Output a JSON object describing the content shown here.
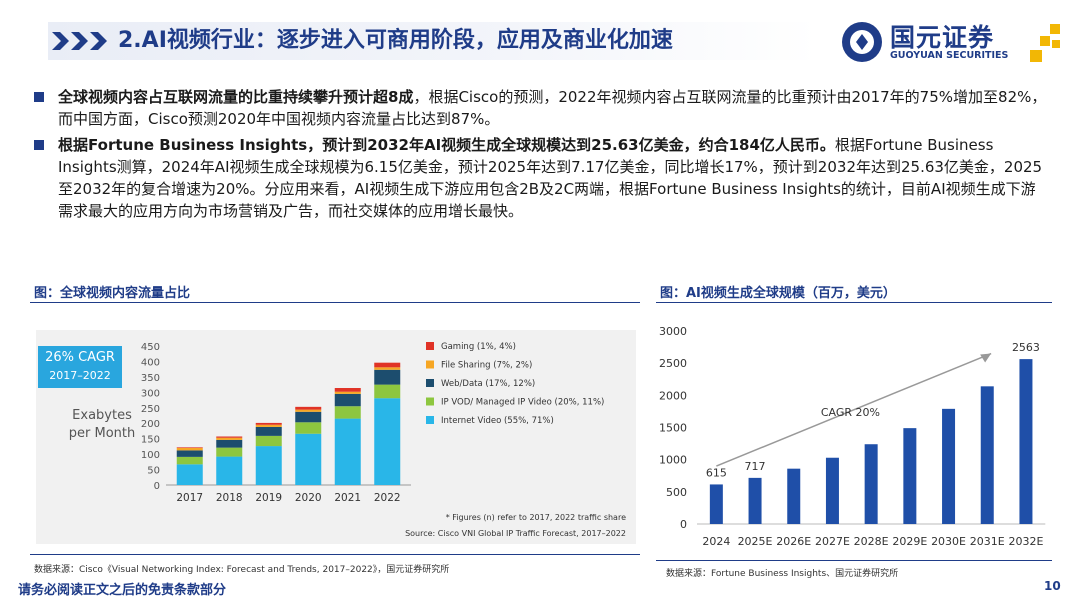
{
  "header": {
    "title": "2.AI视频行业：逐步进入可商用阶段，应用及商业化加速",
    "logo_cn": "国元证券",
    "logo_en": "GUOYUAN SECURITIES"
  },
  "bullets": [
    {
      "bold": "全球视频内容占互联网流量的比重持续攀升预计超8成",
      "text": "，根据Cisco的预测，2022年视频内容占互联网流量的比重预计由2017年的75%增加至82%，而中国方面，Cisco预测2020年中国视频内容流量占比达到87%。"
    },
    {
      "bold": "根据Fortune Business Insights，预计到2032年AI视频生成全球规模达到25.63亿美金，约合184亿人民币。",
      "text": "根据Fortune Business Insights测算，2024年AI视频生成全球规模为6.15亿美金，预计2025年达到7.17亿美金，同比增长17%，预计到2032年达到25.63亿美金，2025至2032年的复合增速为20%。分应用来看，AI视频生成下游应用包含2B及2C两端，根据Fortune Business Insights的统计，目前AI视频生成下游需求最大的应用方向为市场营销及广告，而社交媒体的应用增长最快。"
    }
  ],
  "figure_left": {
    "title": "图：全球视频内容流量占比",
    "cagr_label": "26% CAGR",
    "cagr_years": "2017–2022",
    "ylabel_line1": "Exabytes",
    "ylabel_line2": "per Month",
    "footnote": "* Figures (n) refer to 2017, 2022 traffic share",
    "inner_source": "Source: Cisco VNI Global IP Traffic Forecast, 2017–2022",
    "source": "数据来源：Cisco《Visual Networking Index: Forecast and Trends, 2017–2022》，国元证券研究所"
  },
  "figure_right": {
    "title": "图：AI视频生成全球规模（百万，美元）",
    "cagr_annotation": "CAGR 20%",
    "source": "数据来源：Fortune Business Insights、国元证券研究所"
  },
  "chart_data": [
    {
      "type": "bar",
      "stacked": true,
      "title": "全球视频内容流量占比",
      "ylabel": "Exabytes per Month",
      "categories": [
        "2017",
        "2018",
        "2019",
        "2020",
        "2021",
        "2022"
      ],
      "ylim": [
        0,
        450
      ],
      "yticks": [
        0,
        50,
        100,
        150,
        200,
        250,
        300,
        350,
        400,
        450
      ],
      "series": [
        {
          "name": "Internet Video (55%, 71%)",
          "color": "#29b6e8",
          "values": [
            67,
            92,
            126,
            166,
            215,
            281
          ]
        },
        {
          "name": "IP VOD/ Managed IP Video (20%, 11%)",
          "color": "#8dc63f",
          "values": [
            24,
            29,
            33,
            37,
            40,
            44
          ]
        },
        {
          "name": "Web/Data (17%, 12%)",
          "color": "#1c4d6e",
          "values": [
            21,
            25,
            29,
            34,
            40,
            48
          ]
        },
        {
          "name": "File Sharing (7%, 2%)",
          "color": "#f6a623",
          "values": [
            8,
            7,
            7,
            7,
            7,
            8
          ]
        },
        {
          "name": "Gaming (1%, 4%)",
          "color": "#e03326",
          "values": [
            2,
            4,
            6,
            9,
            12,
            15
          ]
        }
      ]
    },
    {
      "type": "bar",
      "title": "AI视频生成全球规模（百万，美元）",
      "categories": [
        "2024",
        "2025E",
        "2026E",
        "2027E",
        "2028E",
        "2029E",
        "2030E",
        "2031E",
        "2032E"
      ],
      "values": [
        615,
        717,
        860,
        1030,
        1240,
        1490,
        1790,
        2140,
        2563
      ],
      "labels_shown": {
        "0": "615",
        "1": "717",
        "8": "2563"
      },
      "ylim": [
        0,
        3000
      ],
      "yticks": [
        0,
        500,
        1000,
        1500,
        2000,
        2500,
        3000
      ],
      "color": "#1f4fa8"
    }
  ],
  "footer": {
    "disclaimer": "请务必阅读正文之后的免责条款部分",
    "page": "10"
  }
}
